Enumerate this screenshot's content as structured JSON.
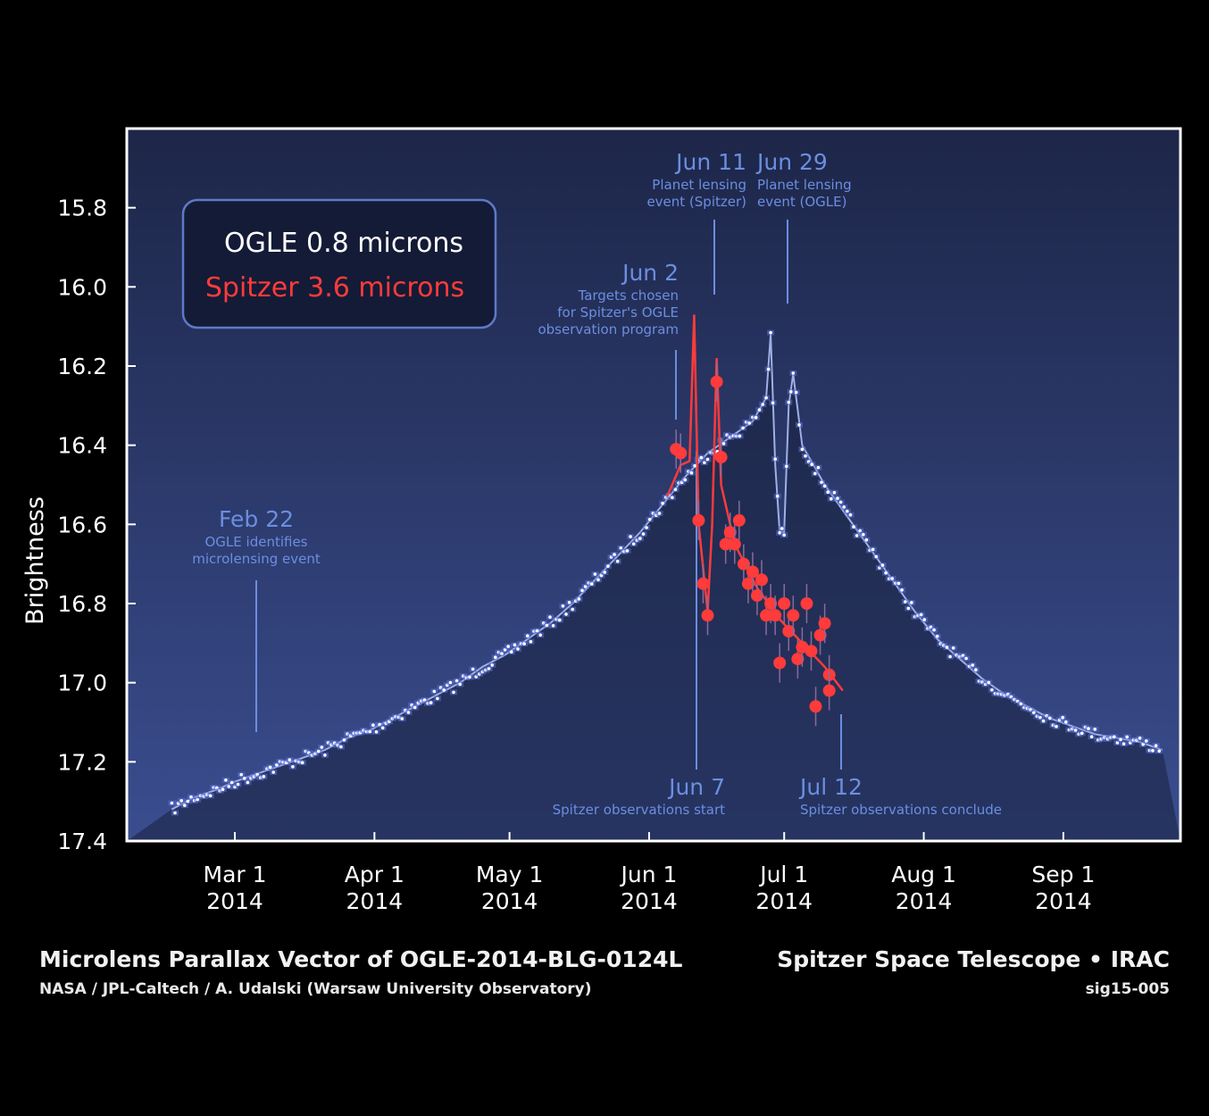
{
  "colors": {
    "background": "#000000",
    "plot_bg_top": "#1d2648",
    "plot_bg_bottom": "#3a4d8f",
    "area_fill": "#18203d",
    "ogle": "#ffffff",
    "ogle_halo": "#5a6fd6",
    "spitzer": "#ff3b3b",
    "annotation": "#6b8ee0",
    "axis": "#ffffff"
  },
  "footer": {
    "title": "Microlens Parallax Vector of OGLE-2014-BLG-0124L",
    "credit": "NASA / JPL-Caltech / A. Udalski (Warsaw University Observatory)",
    "mission": "Spitzer Space Telescope • IRAC",
    "image_id": "sig15-005"
  },
  "chart_data": {
    "type": "scatter",
    "title": "",
    "xlabel": "",
    "ylabel": "Brightness",
    "xlim": [
      "2014-02-05",
      "2014-09-27"
    ],
    "ylim": [
      17.4,
      15.6
    ],
    "y_inverted": true,
    "yticks": [
      15.8,
      16.0,
      16.2,
      16.4,
      16.6,
      16.8,
      17.0,
      17.2,
      17.4
    ],
    "yticklabels": [
      "15.8",
      "16.0",
      "16.2",
      "16.4",
      "16.6",
      "16.8",
      "17.0",
      "17.2",
      "17.4"
    ],
    "xticks": [
      {
        "date": "2014-03-01",
        "label1": "Mar 1",
        "label2": "2014"
      },
      {
        "date": "2014-04-01",
        "label1": "Apr 1",
        "label2": "2014"
      },
      {
        "date": "2014-05-01",
        "label1": "May 1",
        "label2": "2014"
      },
      {
        "date": "2014-06-01",
        "label1": "Jun 1",
        "label2": "2014"
      },
      {
        "date": "2014-07-01",
        "label1": "Jul 1",
        "label2": "2014"
      },
      {
        "date": "2014-08-01",
        "label1": "Aug 1",
        "label2": "2014"
      },
      {
        "date": "2014-09-01",
        "label1": "Sep 1",
        "label2": "2014"
      }
    ],
    "legend": {
      "placement": "top-left",
      "entries": [
        {
          "label": "OGLE 0.8 microns",
          "color": "#ffffff"
        },
        {
          "label": "Spitzer 3.6 microns",
          "color": "#ff3b3b"
        }
      ]
    },
    "series": [
      {
        "name": "OGLE 0.8 microns",
        "kind": "points",
        "x": [
          "2014-02-15",
          "2014-02-20",
          "2014-02-25",
          "2014-03-01",
          "2014-03-06",
          "2014-03-11",
          "2014-03-16",
          "2014-03-21",
          "2014-03-26",
          "2014-03-31",
          "2014-04-05",
          "2014-04-10",
          "2014-04-15",
          "2014-04-20",
          "2014-04-25",
          "2014-04-30",
          "2014-05-05",
          "2014-05-10",
          "2014-05-15",
          "2014-05-20",
          "2014-05-25",
          "2014-05-30",
          "2014-06-04",
          "2014-06-09",
          "2014-06-14",
          "2014-06-19",
          "2014-06-24",
          "2014-06-27",
          "2014-06-28",
          "2014-06-29",
          "2014-06-30",
          "2014-07-01",
          "2014-07-02",
          "2014-07-03",
          "2014-07-05",
          "2014-07-10",
          "2014-07-15",
          "2014-07-20",
          "2014-07-25",
          "2014-07-30",
          "2014-08-04",
          "2014-08-09",
          "2014-08-14",
          "2014-08-19",
          "2014-08-24",
          "2014-08-29",
          "2014-09-03",
          "2014-09-08",
          "2014-09-13",
          "2014-09-18",
          "2014-09-23"
        ],
        "y": [
          17.32,
          17.29,
          17.27,
          17.25,
          17.23,
          17.21,
          17.19,
          17.17,
          17.14,
          17.12,
          17.09,
          17.06,
          17.03,
          17.0,
          16.96,
          16.93,
          16.89,
          16.85,
          16.8,
          16.74,
          16.68,
          16.62,
          16.55,
          16.48,
          16.42,
          16.38,
          16.34,
          16.28,
          16.12,
          16.45,
          16.62,
          16.62,
          16.3,
          16.22,
          16.4,
          16.5,
          16.58,
          16.66,
          16.74,
          16.82,
          16.89,
          16.94,
          16.99,
          17.03,
          17.06,
          17.09,
          17.11,
          17.13,
          17.14,
          17.15,
          17.17
        ]
      },
      {
        "name": "Spitzer 3.6 microns",
        "kind": "points",
        "x": [
          "2014-06-07",
          "2014-06-08",
          "2014-06-12",
          "2014-06-13",
          "2014-06-14",
          "2014-06-16",
          "2014-06-17",
          "2014-06-18",
          "2014-06-19",
          "2014-06-20",
          "2014-06-21",
          "2014-06-22",
          "2014-06-23",
          "2014-06-24",
          "2014-06-25",
          "2014-06-26",
          "2014-06-27",
          "2014-06-28",
          "2014-06-29",
          "2014-06-30",
          "2014-07-01",
          "2014-07-02",
          "2014-07-03",
          "2014-07-04",
          "2014-07-05",
          "2014-07-06",
          "2014-07-07",
          "2014-07-08",
          "2014-07-09",
          "2014-07-10",
          "2014-07-11",
          "2014-07-11"
        ],
        "y": [
          16.41,
          16.42,
          16.59,
          16.75,
          16.83,
          16.24,
          16.43,
          16.65,
          16.62,
          16.65,
          16.59,
          16.7,
          16.75,
          16.72,
          16.78,
          16.74,
          16.83,
          16.8,
          16.83,
          16.95,
          16.8,
          16.87,
          16.83,
          16.94,
          16.91,
          16.8,
          16.92,
          17.06,
          16.88,
          16.85,
          16.98,
          17.02
        ]
      }
    ],
    "annotations": [
      {
        "date": "2014-02-22",
        "title": "Feb 22",
        "lines": [
          "OGLE identifies",
          "microlensing event"
        ]
      },
      {
        "date": "2014-06-02",
        "title": "Jun 2",
        "lines": [
          "Targets chosen",
          "for Spitzer's OGLE",
          "observation program"
        ]
      },
      {
        "date": "2014-06-07",
        "title": "Jun 7",
        "lines": [
          "Spitzer observations start"
        ]
      },
      {
        "date": "2014-06-11",
        "title": "Jun 11",
        "lines": [
          "Planet lensing",
          "event (Spitzer)"
        ]
      },
      {
        "date": "2014-06-29",
        "title": "Jun 29",
        "lines": [
          "Planet lensing",
          "event (OGLE)"
        ]
      },
      {
        "date": "2014-07-12",
        "title": "Jul 12",
        "lines": [
          "Spitzer observations conclude"
        ]
      }
    ]
  }
}
